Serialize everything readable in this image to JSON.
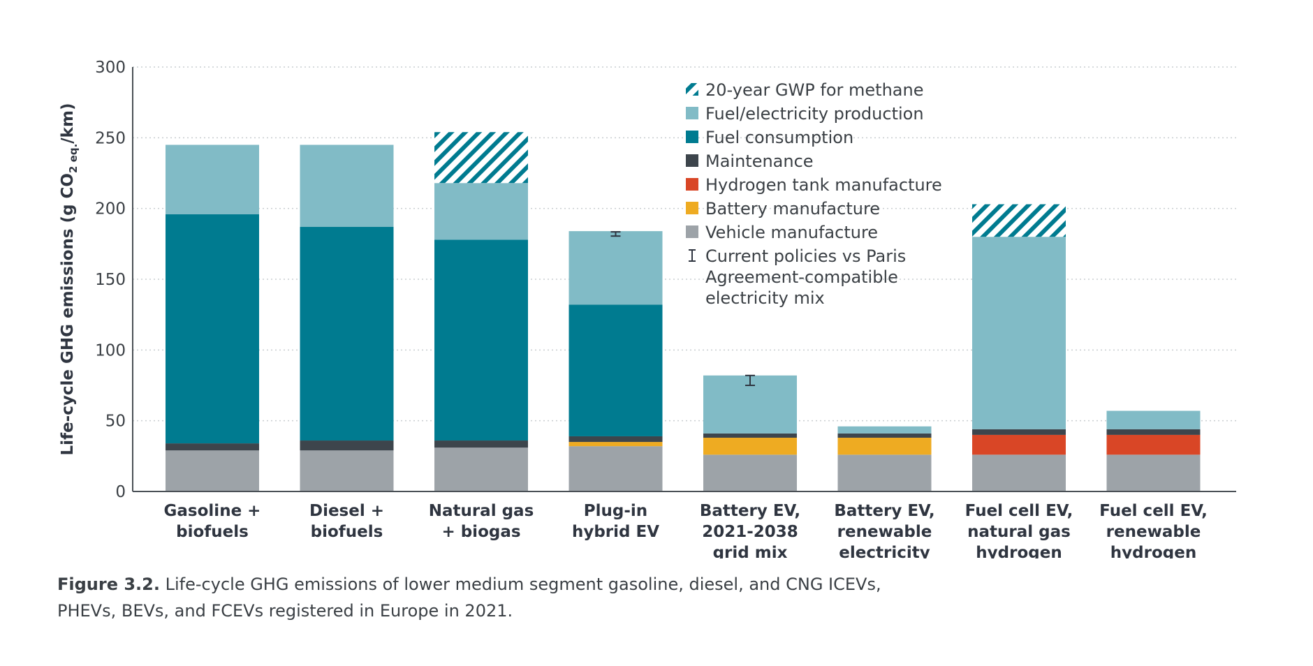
{
  "chart_data": {
    "type": "bar",
    "stacked": true,
    "ylabel": "Life-cycle GHG emissions (g CO",
    "ylabel_sub": "2 eq.",
    "ylabel_suffix": "/km)",
    "ylim": [
      0,
      300
    ],
    "yticks": [
      0,
      50,
      100,
      150,
      200,
      250,
      300
    ],
    "grid": true,
    "legend_position": "top-center",
    "categories": [
      [
        "Gasoline +",
        "biofuels"
      ],
      [
        "Diesel +",
        "biofuels"
      ],
      [
        "Natural gas",
        "+ biogas"
      ],
      [
        "Plug-in",
        "hybrid EV"
      ],
      [
        "Battery EV,",
        "2021-2038",
        "grid mix"
      ],
      [
        "Battery EV,",
        "renewable",
        "electricity"
      ],
      [
        "Fuel cell EV,",
        "natural gas",
        "hydrogen"
      ],
      [
        "Fuel cell EV,",
        "renewable",
        "hydrogen"
      ]
    ],
    "series": [
      {
        "key": "vehicle",
        "name": "Vehicle manufacture",
        "color": "#9da3a8",
        "values": [
          29,
          29,
          31,
          32,
          26,
          26,
          26,
          26
        ]
      },
      {
        "key": "battery",
        "name": "Battery manufacture",
        "color": "#eeab22",
        "values": [
          0,
          0,
          0,
          3,
          12,
          12,
          0,
          0
        ]
      },
      {
        "key": "hydrogen_tank",
        "name": "Hydrogen tank manufacture",
        "color": "#d94626",
        "values": [
          0,
          0,
          0,
          0,
          0,
          0,
          14,
          14
        ]
      },
      {
        "key": "maintenance",
        "name": "Maintenance",
        "color": "#3d454c",
        "values": [
          5,
          7,
          5,
          4,
          3,
          3,
          4,
          4
        ]
      },
      {
        "key": "fuel_consumption",
        "name": "Fuel consumption",
        "color": "#007b90",
        "values": [
          162,
          151,
          142,
          93,
          0,
          0,
          0,
          0
        ]
      },
      {
        "key": "fuel_production",
        "name": "Fuel/electricity production",
        "color": "#81bbc6",
        "values": [
          49,
          58,
          40,
          52,
          41,
          5,
          136,
          13
        ]
      },
      {
        "key": "methane_gwp20",
        "name": "20-year GWP for methane",
        "color": "#007b90",
        "pattern": "hatch",
        "values": [
          0,
          0,
          36,
          0,
          0,
          0,
          23,
          0
        ]
      }
    ],
    "error_bars": [
      {
        "category_index": 3,
        "center": 182,
        "low": 180.5,
        "high": 183.5
      },
      {
        "category_index": 4,
        "center": 78,
        "low": 75,
        "high": 82
      }
    ],
    "legend": [
      {
        "series": "methane_gwp20",
        "label": "20-year GWP for methane"
      },
      {
        "series": "fuel_production",
        "label": "Fuel/electricity production"
      },
      {
        "series": "fuel_consumption",
        "label": "Fuel consumption"
      },
      {
        "series": "maintenance",
        "label": "Maintenance"
      },
      {
        "series": "hydrogen_tank",
        "label": "Hydrogen tank manufacture"
      },
      {
        "series": "battery",
        "label": "Battery manufacture"
      },
      {
        "series": "vehicle",
        "label": "Vehicle manufacture"
      },
      {
        "series": "error_bar",
        "label_lines": [
          "Current policies vs Paris",
          "Agreement-compatible",
          "electricity mix"
        ]
      }
    ]
  },
  "caption": {
    "figure_label": "Figure 3.2.",
    "line1": "Life-cycle GHG emissions of lower medium segment gasoline, diesel, and CNG ICEVs,",
    "line2": "PHEVs, BEVs, and FCEVs registered in Europe in 2021."
  }
}
